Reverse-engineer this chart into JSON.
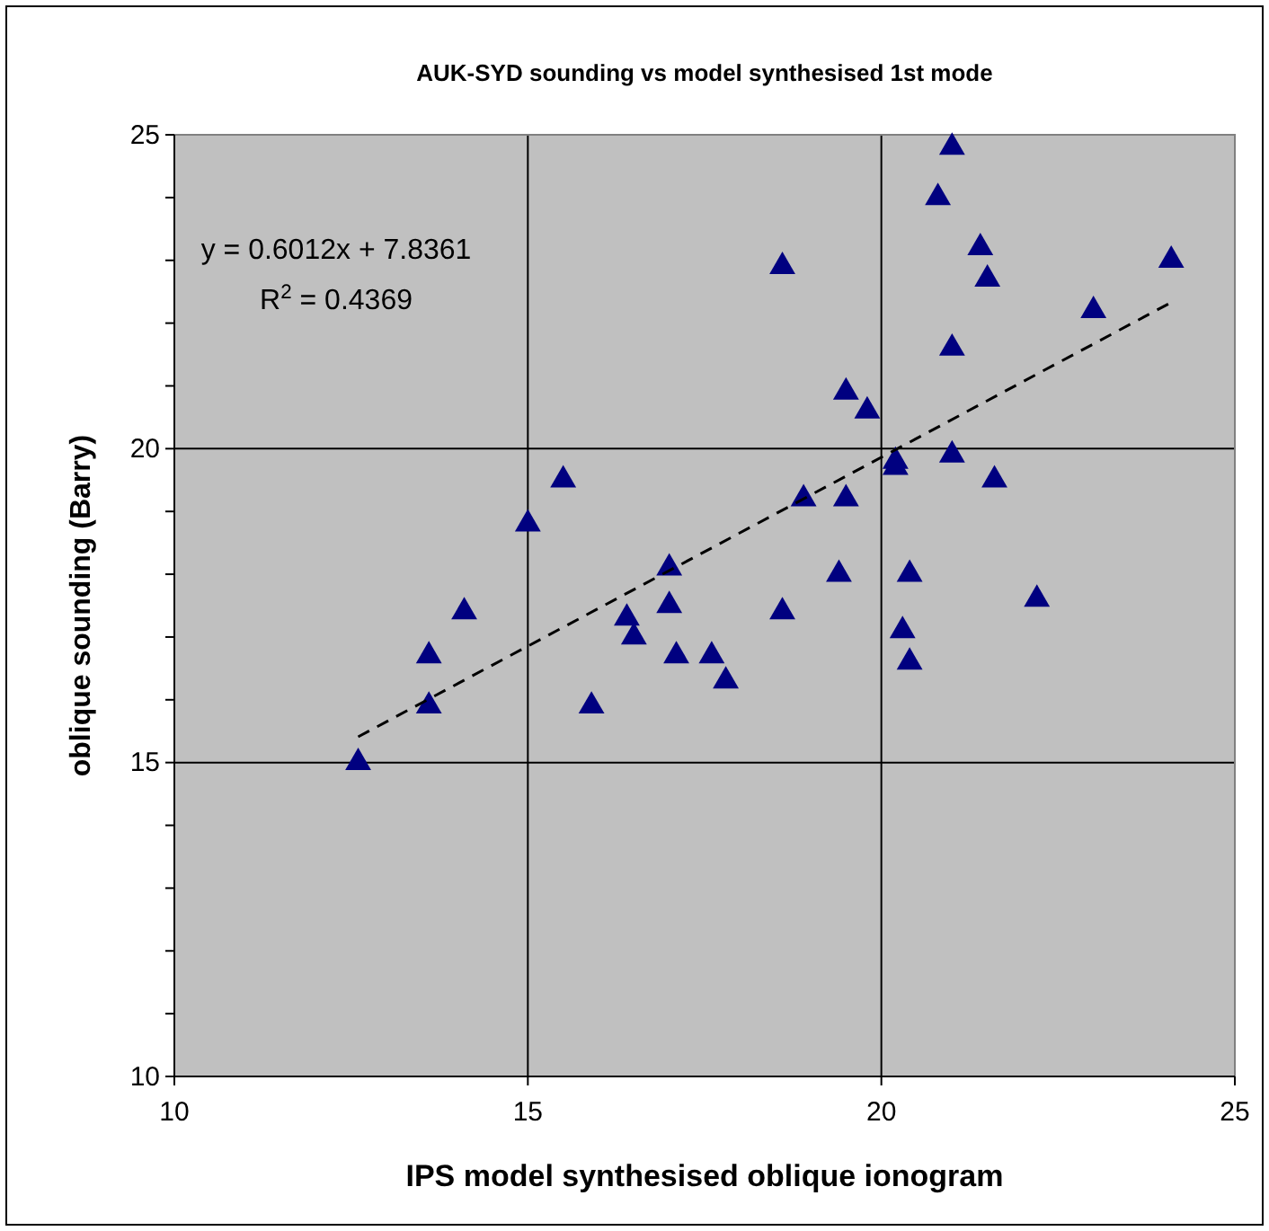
{
  "chart_data": {
    "type": "scatter",
    "title": "AUK-SYD sounding vs model synthesised 1st mode",
    "xlabel": "IPS model synthesised oblique ionogram",
    "ylabel": "oblique sounding (Barry)",
    "xlim": [
      10,
      25
    ],
    "xticks": [
      10,
      15,
      20,
      25
    ],
    "ylim": [
      10,
      25
    ],
    "yticks": [
      10,
      {
        "value": 11,
        "label": null
      },
      {
        "value": 12,
        "label": null
      },
      {
        "value": 13,
        "label": null
      },
      {
        "value": 14,
        "label": null
      },
      15,
      {
        "value": 16,
        "label": null
      },
      {
        "value": 17,
        "label": null
      },
      {
        "value": 18,
        "label": null
      },
      {
        "value": 19,
        "label": null
      },
      20,
      {
        "value": 21,
        "label": null
      },
      {
        "value": 22,
        "label": null
      },
      {
        "value": 23,
        "label": null
      },
      {
        "value": 24,
        "label": null
      },
      25
    ],
    "grid": true,
    "marker": "triangle",
    "annotations": [
      "y = 0.6012x + 7.8361",
      "R$^{2}$ = 0.4369"
    ],
    "series": [
      {
        "color": "#000080",
        "x": [
          12.6,
          13.6,
          13.6,
          14.1,
          15.0,
          15.5,
          15.9,
          16.4,
          16.5,
          17.0,
          17.0,
          17.1,
          17.6,
          17.8,
          18.6,
          18.6,
          18.9,
          19.4,
          19.5,
          19.5,
          19.8,
          20.2,
          20.2,
          20.3,
          20.4,
          20.4,
          20.8,
          21.0,
          21.0,
          21.0,
          21.4,
          21.5,
          21.6,
          22.2,
          23.0,
          24.1
        ],
        "values": [
          15.0,
          16.7,
          15.9,
          17.4,
          18.8,
          19.5,
          15.9,
          17.3,
          17.0,
          18.1,
          17.5,
          16.7,
          16.7,
          16.3,
          22.9,
          17.4,
          19.2,
          18.0,
          20.9,
          19.2,
          20.6,
          19.8,
          19.7,
          17.1,
          18.0,
          16.6,
          24.0,
          24.8,
          21.6,
          19.9,
          23.2,
          22.7,
          19.5,
          17.6,
          22.2,
          23.0
        ]
      },
      {
        "type": "line",
        "color": "#000000",
        "line_style": "dashed",
        "marker": "none",
        "x": [
          12.6,
          24.1
        ],
        "values": [
          15.41,
          22.33
        ]
      }
    ]
  }
}
